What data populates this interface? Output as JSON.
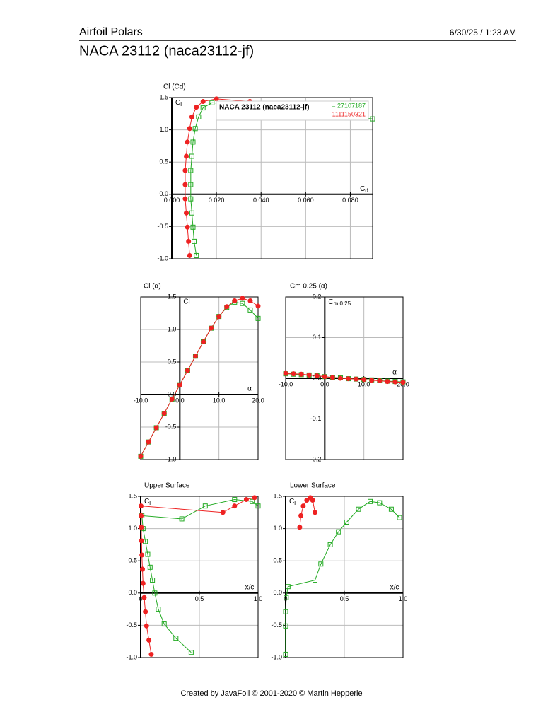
{
  "header": {
    "title": "Airfoil Polars",
    "date": "6/30/25 / 1:23 AM",
    "subtitle": "NACA 23112 (naca23112-jf)"
  },
  "footer": "Created by JavaFoil © 2001-2020 © Martin Hepperle",
  "chart_data": [
    {
      "type": "line",
      "title": "Cl (Cd)",
      "x_label": {
        "main": "C",
        "sub": "d"
      },
      "y_label": {
        "main": "C",
        "sub": "l"
      },
      "xlim": [
        0,
        0.09
      ],
      "ylim": [
        -1,
        1.5
      ],
      "xticks": [
        {
          "value": 0,
          "label": "0.000"
        },
        {
          "value": 0.02,
          "label": "0.020"
        },
        {
          "value": 0.04,
          "label": "0.040"
        },
        {
          "value": 0.06,
          "label": "0.060"
        },
        {
          "value": 0.08,
          "label": "0.080"
        }
      ],
      "yticks": [
        {
          "value": -1,
          "label": "-1.0"
        },
        {
          "value": -0.5,
          "label": "-0.5"
        },
        {
          "value": 0,
          "label": "0.0"
        },
        {
          "value": 0.5,
          "label": "0.5"
        },
        {
          "value": 1,
          "label": "1.0"
        },
        {
          "value": 1.5,
          "label": "1.5"
        }
      ],
      "grid": true,
      "legend": "top-right",
      "legend_title": "NACA 23112 (naca23112-jf)",
      "series": [
        {
          "name": "= 27107187",
          "color": "#22aa22",
          "marker": "square",
          "x": [
            0.011,
            0.01,
            0.0095,
            0.009,
            0.0085,
            0.0085,
            0.0085,
            0.009,
            0.0095,
            0.0105,
            0.012,
            0.014,
            0.018,
            0.025,
            0.045,
            0.09
          ],
          "values": [
            -0.95,
            -0.73,
            -0.51,
            -0.29,
            -0.07,
            0.15,
            0.37,
            0.59,
            0.81,
            1.02,
            1.2,
            1.34,
            1.42,
            1.4,
            1.3,
            1.17
          ]
        },
        {
          "name": "1111150321",
          "color": "#ee2222",
          "marker": "circle",
          "x": [
            0.008,
            0.0075,
            0.007,
            0.0065,
            0.006,
            0.006,
            0.006,
            0.0065,
            0.007,
            0.008,
            0.009,
            0.011,
            0.014,
            0.02,
            0.035,
            0.06
          ],
          "values": [
            -0.95,
            -0.73,
            -0.51,
            -0.29,
            -0.07,
            0.15,
            0.37,
            0.59,
            0.81,
            1.02,
            1.2,
            1.35,
            1.44,
            1.48,
            1.44,
            1.36
          ]
        }
      ]
    },
    {
      "type": "line",
      "title": "Cl (α)",
      "x_label": "α",
      "y_label": "Cl",
      "xlim": [
        -10,
        20
      ],
      "ylim": [
        -1,
        1.5
      ],
      "xticks": [
        {
          "value": -10,
          "label": "-10.0"
        },
        {
          "value": 0,
          "label": "0.0"
        },
        {
          "value": 10,
          "label": "10.0"
        },
        {
          "value": 20,
          "label": "20.0"
        }
      ],
      "yticks": [
        {
          "value": -1,
          "label": "-1.0"
        },
        {
          "value": -0.5,
          "label": "-0.5"
        },
        {
          "value": 0,
          "label": "0.0"
        },
        {
          "value": 0.5,
          "label": "0.5"
        },
        {
          "value": 1,
          "label": "1.0"
        },
        {
          "value": 1.5,
          "label": "1.5"
        }
      ],
      "grid": true,
      "x": [
        -10,
        -8,
        -6,
        -4,
        -2,
        0,
        2,
        4,
        6,
        8,
        10,
        12,
        14,
        16,
        18,
        20
      ],
      "series": [
        {
          "color": "#22aa22",
          "marker": "square",
          "values": [
            -0.95,
            -0.73,
            -0.51,
            -0.29,
            -0.07,
            0.15,
            0.37,
            0.59,
            0.81,
            1.02,
            1.2,
            1.34,
            1.42,
            1.4,
            1.3,
            1.17
          ]
        },
        {
          "color": "#ee2222",
          "marker": "circle",
          "values": [
            -0.95,
            -0.73,
            -0.51,
            -0.29,
            -0.07,
            0.15,
            0.37,
            0.59,
            0.81,
            1.02,
            1.2,
            1.35,
            1.44,
            1.48,
            1.44,
            1.36
          ]
        }
      ]
    },
    {
      "type": "line",
      "title": "Cm 0.25 (α)",
      "x_label": "α",
      "y_label": {
        "main": "C",
        "sub": "m 0.25"
      },
      "xlim": [
        -10,
        20
      ],
      "ylim": [
        -0.2,
        0.2
      ],
      "xticks": [
        {
          "value": -10,
          "label": "-10.0"
        },
        {
          "value": 0,
          "label": "0.0"
        },
        {
          "value": 10,
          "label": "10.0"
        },
        {
          "value": 20,
          "label": "20.0"
        }
      ],
      "yticks": [
        -0.2,
        -0.1,
        {
          "value": 0,
          "label": "0.0"
        },
        0.1,
        0.2
      ],
      "grid": true,
      "x": [
        -10,
        -8,
        -6,
        -4,
        -2,
        0,
        2,
        4,
        6,
        8,
        10,
        12,
        14,
        16,
        18,
        20
      ],
      "series": [
        {
          "color": "#22aa22",
          "marker": "square",
          "values": [
            0.011,
            0.01,
            0.009,
            0.008,
            0.006,
            0.004,
            0.002,
            0.001,
            -0.001,
            -0.002,
            -0.003,
            -0.004,
            -0.006,
            -0.007,
            -0.008,
            -0.009
          ]
        },
        {
          "color": "#ee2222",
          "marker": "circle",
          "values": [
            0.012,
            0.011,
            0.01,
            0.008,
            0.006,
            0.004,
            0.002,
            0,
            -0.001,
            -0.002,
            -0.003,
            -0.005,
            -0.006,
            -0.008,
            -0.009,
            -0.01
          ]
        }
      ]
    },
    {
      "type": "line",
      "title": "Upper Surface",
      "x_label": "x/c",
      "y_label": {
        "main": "C",
        "sub": "l"
      },
      "xlim": [
        0,
        1
      ],
      "ylim": [
        -1,
        1.5
      ],
      "xticks": [
        0,
        0.5,
        {
          "value": 1,
          "label": "1.0"
        }
      ],
      "yticks": [
        {
          "value": -1,
          "label": "-1.0"
        },
        {
          "value": -0.5,
          "label": "-0.5"
        },
        {
          "value": 0,
          "label": "0.0"
        },
        {
          "value": 0.5,
          "label": "0.5"
        },
        {
          "value": 1,
          "label": "1.0"
        },
        {
          "value": 1.5,
          "label": "1.5"
        }
      ],
      "grid": true,
      "series": [
        {
          "color": "#22aa22",
          "marker": "square",
          "x": [
            0.43,
            0.3,
            0.2,
            0.15,
            0.12,
            0.1,
            0.08,
            0.06,
            0.04,
            0.02,
            0.01,
            0.35,
            0.55,
            0.8,
            0.95,
            1.0
          ],
          "values": [
            -0.92,
            -0.7,
            -0.48,
            -0.25,
            0.0,
            0.2,
            0.4,
            0.6,
            0.8,
            1.0,
            1.2,
            1.15,
            1.35,
            1.45,
            1.42,
            1.35
          ]
        },
        {
          "color": "#ee2222",
          "marker": "circle",
          "x": [
            0.09,
            0.07,
            0.05,
            0.04,
            0.03,
            0.02,
            0.015,
            0.01,
            0.007,
            0.005,
            0.004,
            0.003,
            0.7,
            0.8,
            0.9,
            0.97
          ],
          "values": [
            -0.95,
            -0.73,
            -0.51,
            -0.29,
            -0.07,
            0.15,
            0.37,
            0.59,
            0.81,
            1.02,
            1.2,
            1.35,
            1.25,
            1.35,
            1.45,
            1.48
          ]
        }
      ]
    },
    {
      "type": "line",
      "title": "Lower Surface",
      "x_label": "x/c",
      "y_label": {
        "main": "C",
        "sub": "l"
      },
      "xlim": [
        0,
        1
      ],
      "ylim": [
        -1,
        1.5
      ],
      "xticks": [
        0,
        0.5,
        {
          "value": 1,
          "label": "1.0"
        }
      ],
      "yticks": [
        {
          "value": -1,
          "label": "-1.0"
        },
        {
          "value": -0.5,
          "label": "-0.5"
        },
        {
          "value": 0,
          "label": "0.0"
        },
        {
          "value": 0.5,
          "label": "0.5"
        },
        {
          "value": 1,
          "label": "1.0"
        },
        {
          "value": 1.5,
          "label": "1.5"
        }
      ],
      "grid": true,
      "series": [
        {
          "color": "#22aa22",
          "marker": "square",
          "x": [
            0.0,
            0.0,
            0.0,
            0.005,
            0.02,
            0.25,
            0.3,
            0.38,
            0.45,
            0.52,
            0.62,
            0.72,
            0.8,
            0.9,
            0.97
          ],
          "values": [
            -0.95,
            -0.51,
            -0.29,
            -0.07,
            0.1,
            0.2,
            0.45,
            0.75,
            0.95,
            1.1,
            1.3,
            1.42,
            1.4,
            1.3,
            1.17
          ]
        },
        {
          "color": "#ee2222",
          "marker": "circle",
          "x": [
            0.12,
            0.13,
            0.15,
            0.18,
            0.21,
            0.23,
            0.25
          ],
          "values": [
            1.02,
            1.2,
            1.35,
            1.44,
            1.48,
            1.44,
            1.25
          ]
        }
      ]
    }
  ]
}
